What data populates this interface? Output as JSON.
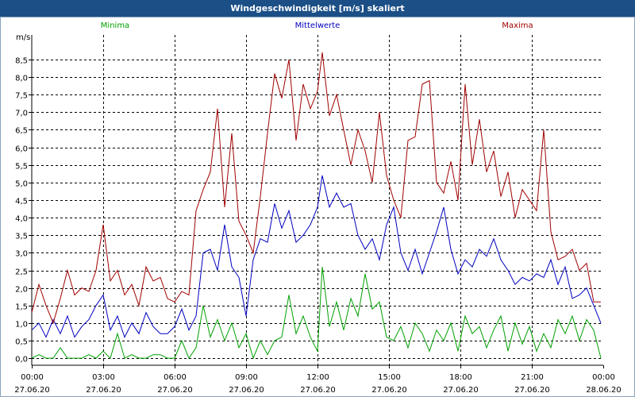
{
  "chart_data": {
    "type": "line",
    "title": "Windgeschwindigkeit [m/s] skaliert",
    "ylabel": "m/s",
    "ylim": [
      -0.2,
      9.2
    ],
    "y_ticks": [
      "0,0",
      "0,5",
      "1,0",
      "1,5",
      "2,0",
      "2,5",
      "3,0",
      "3,5",
      "4,0",
      "4,5",
      "5,0",
      "5,5",
      "6,0",
      "6,5",
      "7,0",
      "7,5",
      "8,0",
      "8,5"
    ],
    "y_tick_values": [
      0,
      0.5,
      1,
      1.5,
      2,
      2.5,
      3,
      3.5,
      4,
      4.5,
      5,
      5.5,
      6,
      6.5,
      7,
      7.5,
      8,
      8.5
    ],
    "xlim": [
      0,
      24
    ],
    "x_ticks": [
      {
        "t": 0,
        "time": "00:00",
        "date": "27.06.20"
      },
      {
        "t": 3,
        "time": "03:00",
        "date": "27.06.20"
      },
      {
        "t": 6,
        "time": "06:00",
        "date": "27.06.20"
      },
      {
        "t": 9,
        "time": "09:00",
        "date": "27.06.20"
      },
      {
        "t": 12,
        "time": "12:00",
        "date": "27.06.20"
      },
      {
        "t": 15,
        "time": "15:00",
        "date": "27.06.20"
      },
      {
        "t": 18,
        "time": "18:00",
        "date": "27.06.20"
      },
      {
        "t": 21,
        "time": "21:00",
        "date": "27.06.20"
      },
      {
        "t": 24,
        "time": "00:00",
        "date": "28.06.20"
      }
    ],
    "series": [
      {
        "name": "Minima",
        "color": "#00a000",
        "x": [
          0,
          0.3,
          0.6,
          0.9,
          1.2,
          1.5,
          1.8,
          2.1,
          2.4,
          2.7,
          3.0,
          3.3,
          3.6,
          3.9,
          4.2,
          4.5,
          4.8,
          5.1,
          5.4,
          5.7,
          6.0,
          6.3,
          6.6,
          6.9,
          7.2,
          7.5,
          7.8,
          8.1,
          8.4,
          8.7,
          9.0,
          9.3,
          9.6,
          9.9,
          10.2,
          10.5,
          10.8,
          11.1,
          11.4,
          11.7,
          12.0,
          12.2,
          12.5,
          12.8,
          13.1,
          13.4,
          13.7,
          14.0,
          14.3,
          14.6,
          14.9,
          15.2,
          15.5,
          15.8,
          16.1,
          16.4,
          16.7,
          17.0,
          17.3,
          17.6,
          17.9,
          18.2,
          18.5,
          18.8,
          19.1,
          19.4,
          19.7,
          20.0,
          20.3,
          20.6,
          20.9,
          21.2,
          21.5,
          21.8,
          22.1,
          22.4,
          22.7,
          23.0,
          23.3,
          23.6,
          23.9
        ],
        "values": [
          0.0,
          0.1,
          0.0,
          0.0,
          0.3,
          0.0,
          0.0,
          0.0,
          0.1,
          0.0,
          0.2,
          0.0,
          0.7,
          0.0,
          0.1,
          0.0,
          0.0,
          0.1,
          0.1,
          0.0,
          0.0,
          0.5,
          0.0,
          0.3,
          1.5,
          0.6,
          1.1,
          0.5,
          1.0,
          0.3,
          0.7,
          0.0,
          0.5,
          0.1,
          0.5,
          0.6,
          1.8,
          0.7,
          1.2,
          0.6,
          0.2,
          2.6,
          0.9,
          1.6,
          0.8,
          1.7,
          1.2,
          2.4,
          1.4,
          1.6,
          0.6,
          0.5,
          0.9,
          0.3,
          1.0,
          0.7,
          0.2,
          0.8,
          0.5,
          1.0,
          0.2,
          1.2,
          0.7,
          0.9,
          0.3,
          0.8,
          1.2,
          0.2,
          1.0,
          0.4,
          0.9,
          0.2,
          0.7,
          0.3,
          1.1,
          0.7,
          1.2,
          0.5,
          1.1,
          0.8,
          0.0
        ]
      },
      {
        "name": "Mittelwerte",
        "color": "#0000c0",
        "x": [
          0,
          0.3,
          0.6,
          0.9,
          1.2,
          1.5,
          1.8,
          2.1,
          2.4,
          2.7,
          3.0,
          3.3,
          3.6,
          3.9,
          4.2,
          4.5,
          4.8,
          5.1,
          5.4,
          5.7,
          6.0,
          6.3,
          6.6,
          6.9,
          7.2,
          7.5,
          7.8,
          8.1,
          8.4,
          8.7,
          9.0,
          9.3,
          9.6,
          9.9,
          10.2,
          10.5,
          10.8,
          11.1,
          11.4,
          11.7,
          12.0,
          12.2,
          12.5,
          12.8,
          13.1,
          13.4,
          13.7,
          14.0,
          14.3,
          14.6,
          14.9,
          15.2,
          15.5,
          15.8,
          16.1,
          16.4,
          16.7,
          17.0,
          17.3,
          17.6,
          17.9,
          18.2,
          18.5,
          18.8,
          19.1,
          19.4,
          19.7,
          20.0,
          20.3,
          20.6,
          20.9,
          21.2,
          21.5,
          21.8,
          22.1,
          22.4,
          22.7,
          23.0,
          23.3,
          23.6,
          23.9
        ],
        "values": [
          0.8,
          1.0,
          0.6,
          1.1,
          0.7,
          1.2,
          0.6,
          0.9,
          1.1,
          1.5,
          1.8,
          0.8,
          1.2,
          0.6,
          1.0,
          0.7,
          1.3,
          0.9,
          0.7,
          0.7,
          0.9,
          1.4,
          0.8,
          1.2,
          3.0,
          3.1,
          2.5,
          3.8,
          2.6,
          2.3,
          1.2,
          2.8,
          3.4,
          3.3,
          4.4,
          3.7,
          4.2,
          3.3,
          3.5,
          3.8,
          4.3,
          5.2,
          4.3,
          4.7,
          4.3,
          4.4,
          3.5,
          3.1,
          3.4,
          2.8,
          3.8,
          4.3,
          3.0,
          2.5,
          3.1,
          2.4,
          3.0,
          3.6,
          4.3,
          3.1,
          2.4,
          2.8,
          2.6,
          3.1,
          2.9,
          3.4,
          2.8,
          2.5,
          2.1,
          2.3,
          2.2,
          2.4,
          2.3,
          2.8,
          2.1,
          2.6,
          1.7,
          1.8,
          2.0,
          1.5,
          1.0
        ]
      },
      {
        "name": "Maxima",
        "color": "#a00000",
        "x": [
          0,
          0.3,
          0.6,
          0.9,
          1.2,
          1.5,
          1.8,
          2.1,
          2.4,
          2.7,
          3.0,
          3.3,
          3.6,
          3.9,
          4.2,
          4.5,
          4.8,
          5.1,
          5.4,
          5.7,
          6.0,
          6.3,
          6.6,
          6.9,
          7.2,
          7.5,
          7.8,
          8.1,
          8.4,
          8.7,
          9.0,
          9.3,
          9.6,
          9.9,
          10.2,
          10.5,
          10.8,
          11.1,
          11.4,
          11.7,
          12.0,
          12.2,
          12.5,
          12.8,
          13.1,
          13.4,
          13.7,
          14.0,
          14.3,
          14.6,
          14.9,
          15.2,
          15.5,
          15.8,
          16.1,
          16.4,
          16.7,
          17.0,
          17.3,
          17.6,
          17.9,
          18.2,
          18.5,
          18.8,
          19.1,
          19.4,
          19.7,
          20.0,
          20.3,
          20.6,
          20.9,
          21.2,
          21.5,
          21.8,
          22.1,
          22.4,
          22.7,
          23.0,
          23.3,
          23.6,
          23.9
        ],
        "values": [
          1.3,
          2.1,
          1.5,
          1.0,
          1.7,
          2.5,
          1.8,
          2.0,
          1.9,
          2.5,
          3.8,
          2.2,
          2.5,
          1.8,
          2.1,
          1.5,
          2.6,
          2.2,
          2.3,
          1.7,
          1.6,
          1.9,
          1.8,
          4.2,
          4.8,
          5.3,
          7.1,
          4.3,
          6.4,
          3.9,
          3.5,
          3.0,
          4.6,
          6.4,
          8.1,
          7.4,
          8.5,
          6.2,
          7.8,
          7.1,
          7.6,
          8.7,
          6.9,
          7.5,
          6.5,
          5.5,
          6.5,
          5.9,
          5.0,
          7.0,
          5.2,
          4.5,
          4.0,
          6.2,
          6.3,
          7.8,
          7.9,
          5.0,
          4.7,
          5.6,
          4.5,
          7.8,
          5.5,
          6.8,
          5.3,
          5.9,
          4.6,
          5.3,
          4.0,
          4.8,
          4.5,
          4.2,
          6.5,
          3.6,
          2.8,
          2.9,
          3.1,
          2.5,
          2.7,
          1.6,
          1.6
        ]
      }
    ]
  }
}
